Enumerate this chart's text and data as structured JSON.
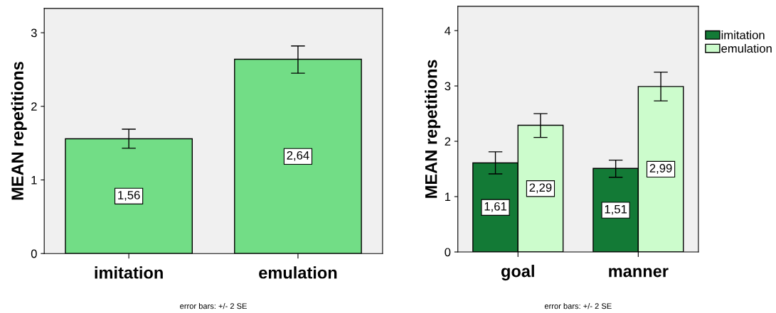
{
  "chart_data": [
    {
      "type": "bar",
      "ylabel": "MEAN repetitions",
      "categories": [
        "imitation",
        "emulation"
      ],
      "ylim": [
        0,
        3.33
      ],
      "yticks": [
        0,
        1,
        2,
        3
      ],
      "grid": false,
      "legend": false,
      "annotations": [
        "error bars: +/- 2 SE"
      ],
      "series": [
        {
          "color": "#72dd86",
          "values": [
            1.56,
            2.64
          ],
          "errors": [
            [
              1.43,
              1.69
            ],
            [
              2.45,
              2.82
            ]
          ],
          "value_labels": [
            "1,56",
            "2,64"
          ]
        }
      ]
    },
    {
      "type": "bar",
      "ylabel": "MEAN repetitions",
      "categories": [
        "goal",
        "manner"
      ],
      "ylim": [
        0,
        4.44
      ],
      "yticks": [
        0,
        1,
        2,
        3,
        4
      ],
      "grid": false,
      "legend": "top right",
      "annotations": [
        "error bars: +/- 2 SE"
      ],
      "series": [
        {
          "name": "imitation",
          "color": "#137a36",
          "values": [
            1.61,
            1.51
          ],
          "errors": [
            [
              1.41,
              1.81
            ],
            [
              1.35,
              1.66
            ]
          ],
          "value_labels": [
            "1,61",
            "1,51"
          ]
        },
        {
          "name": "emulation",
          "color": "#ccfccc",
          "values": [
            2.29,
            2.99
          ],
          "errors": [
            [
              2.07,
              2.5
            ],
            [
              2.73,
              3.25
            ]
          ],
          "value_labels": [
            "2,29",
            "2,99"
          ]
        }
      ]
    }
  ]
}
